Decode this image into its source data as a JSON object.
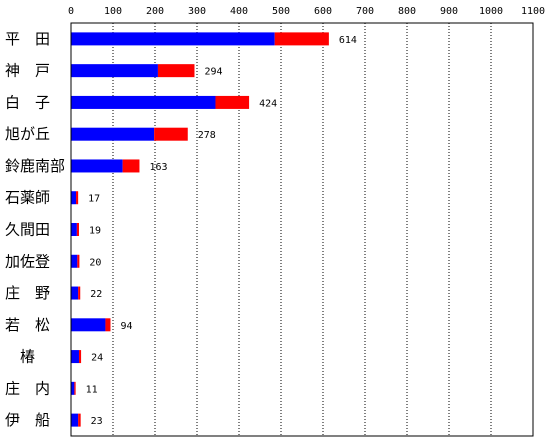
{
  "chart_data": {
    "type": "bar",
    "orientation": "horizontal",
    "stacked": true,
    "xlim": [
      0,
      1100
    ],
    "x_ticks": [
      0,
      100,
      200,
      300,
      400,
      500,
      600,
      700,
      800,
      900,
      1000,
      1100
    ],
    "grid": "vertical, dotted",
    "categories": [
      "平　田",
      "神　戸",
      "白　子",
      "旭が丘",
      "鈴鹿南部",
      "石薬師",
      "久間田",
      "加佐登",
      "庄　野",
      "若　松",
      "　椿",
      "庄　内",
      "伊　船"
    ],
    "series": [
      {
        "color": "#0000ff",
        "values": [
          485,
          207,
          344,
          198,
          123,
          12,
          14,
          15,
          17,
          82,
          19,
          8,
          17
        ]
      },
      {
        "color": "#ff0000",
        "values": [
          129,
          87,
          80,
          80,
          40,
          5,
          5,
          5,
          5,
          12,
          5,
          3,
          6
        ]
      }
    ],
    "totals": [
      614,
      294,
      424,
      278,
      163,
      17,
      19,
      20,
      22,
      94,
      24,
      11,
      23
    ]
  }
}
